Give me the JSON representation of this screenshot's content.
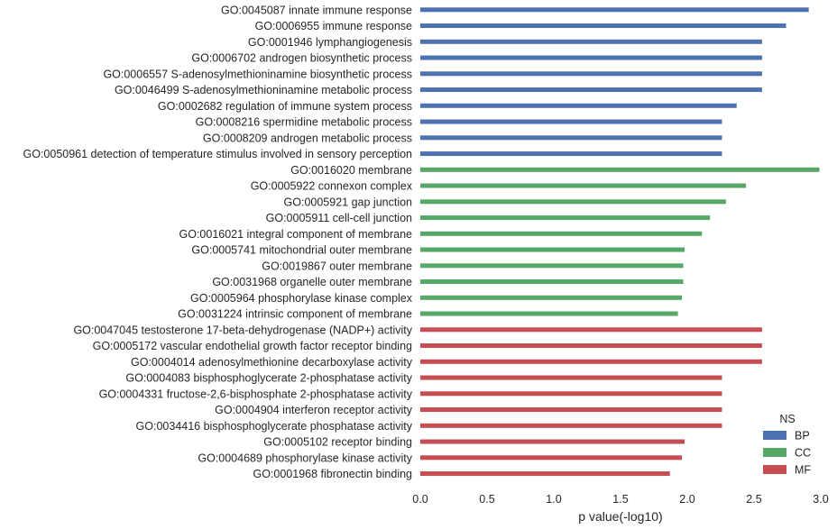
{
  "chart_data": {
    "type": "bar",
    "orientation": "horizontal",
    "xlabel": "p value(-log10)",
    "xlim": [
      0.0,
      3.0
    ],
    "xticks": [
      "0.0",
      "0.5",
      "1.0",
      "1.5",
      "2.0",
      "2.5",
      "3.0"
    ],
    "grid": false,
    "legend": {
      "title": "NS",
      "placement": "lower-right",
      "entries": [
        {
          "name": "BP",
          "color": "#4c72b0"
        },
        {
          "name": "CC",
          "color": "#55a868"
        },
        {
          "name": "MF",
          "color": "#c44e52"
        }
      ]
    },
    "bars": [
      {
        "label": "GO:0045087 innate immune response",
        "value": 2.91,
        "ns": "BP"
      },
      {
        "label": "GO:0006955 immune response",
        "value": 2.74,
        "ns": "BP"
      },
      {
        "label": "GO:0001946 lymphangiogenesis",
        "value": 2.56,
        "ns": "BP"
      },
      {
        "label": "GO:0006702 androgen biosynthetic process",
        "value": 2.56,
        "ns": "BP"
      },
      {
        "label": "GO:0006557 S-adenosylmethioninamine biosynthetic process",
        "value": 2.56,
        "ns": "BP"
      },
      {
        "label": "GO:0046499 S-adenosylmethioninamine metabolic process",
        "value": 2.56,
        "ns": "BP"
      },
      {
        "label": "GO:0002682 regulation of immune system process",
        "value": 2.37,
        "ns": "BP"
      },
      {
        "label": "GO:0008216 spermidine metabolic process",
        "value": 2.26,
        "ns": "BP"
      },
      {
        "label": "GO:0008209 androgen metabolic process",
        "value": 2.26,
        "ns": "BP"
      },
      {
        "label": "GO:0050961 detection of temperature stimulus involved in sensory perception",
        "value": 2.26,
        "ns": "BP"
      },
      {
        "label": "GO:0016020 membrane",
        "value": 2.99,
        "ns": "CC"
      },
      {
        "label": "GO:0005922 connexon complex",
        "value": 2.44,
        "ns": "CC"
      },
      {
        "label": "GO:0005921 gap junction",
        "value": 2.29,
        "ns": "CC"
      },
      {
        "label": "GO:0005911 cell-cell junction",
        "value": 2.17,
        "ns": "CC"
      },
      {
        "label": "GO:0016021 integral component of membrane",
        "value": 2.11,
        "ns": "CC"
      },
      {
        "label": "GO:0005741 mitochondrial outer membrane",
        "value": 1.98,
        "ns": "CC"
      },
      {
        "label": "GO:0019867 outer membrane",
        "value": 1.97,
        "ns": "CC"
      },
      {
        "label": "GO:0031968 organelle outer membrane",
        "value": 1.97,
        "ns": "CC"
      },
      {
        "label": "GO:0005964 phosphorylase kinase complex",
        "value": 1.96,
        "ns": "CC"
      },
      {
        "label": "GO:0031224 intrinsic component of membrane",
        "value": 1.93,
        "ns": "CC"
      },
      {
        "label": "GO:0047045 testosterone 17-beta-dehydrogenase (NADP+) activity",
        "value": 2.56,
        "ns": "MF"
      },
      {
        "label": "GO:0005172 vascular endothelial growth factor receptor binding",
        "value": 2.56,
        "ns": "MF"
      },
      {
        "label": "GO:0004014 adenosylmethionine decarboxylase activity",
        "value": 2.56,
        "ns": "MF"
      },
      {
        "label": "GO:0004083 bisphosphoglycerate 2-phosphatase activity",
        "value": 2.26,
        "ns": "MF"
      },
      {
        "label": "GO:0004331 fructose-2,6-bisphosphate 2-phosphatase activity",
        "value": 2.26,
        "ns": "MF"
      },
      {
        "label": "GO:0004904 interferon receptor activity",
        "value": 2.26,
        "ns": "MF"
      },
      {
        "label": "GO:0034416 bisphosphoglycerate phosphatase activity",
        "value": 2.26,
        "ns": "MF"
      },
      {
        "label": "GO:0005102 receptor binding",
        "value": 1.98,
        "ns": "MF"
      },
      {
        "label": "GO:0004689 phosphorylase kinase activity",
        "value": 1.96,
        "ns": "MF"
      },
      {
        "label": "GO:0001968 fibronectin binding",
        "value": 1.87,
        "ns": "MF"
      }
    ]
  }
}
